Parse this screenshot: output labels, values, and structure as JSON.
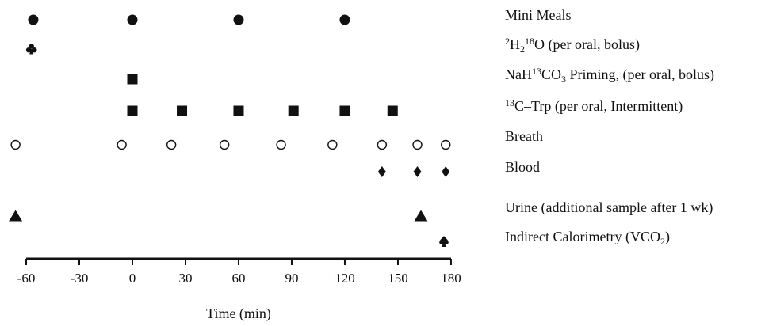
{
  "chart_data": {
    "type": "scatter",
    "title": "",
    "xlabel": "Time (min)",
    "ylabel": "",
    "xlim": [
      -68,
      183
    ],
    "xticks": [
      -60,
      -30,
      0,
      30,
      60,
      90,
      120,
      150,
      180
    ],
    "xtick_labels": [
      "-60",
      "-30",
      "0",
      "30",
      "60",
      "90",
      "120",
      "150",
      "180"
    ],
    "grid": false,
    "series": [
      {
        "key": "meals",
        "label_parts": [
          {
            "t": "Mini Meals",
            "s": ""
          }
        ],
        "marker": "filled-circle",
        "x": [
          -56,
          0,
          60,
          120
        ]
      },
      {
        "key": "water",
        "label_parts": [
          {
            "t": "2",
            "s": "sup"
          },
          {
            "t": "H",
            "s": ""
          },
          {
            "t": "2",
            "s": "sub"
          },
          {
            "t": "18",
            "s": "sup"
          },
          {
            "t": "O (per oral, bolus)",
            "s": ""
          }
        ],
        "marker": "club",
        "x": [
          -57
        ]
      },
      {
        "key": "priming",
        "label_parts": [
          {
            "t": "NaH",
            "s": ""
          },
          {
            "t": "13",
            "s": "sup"
          },
          {
            "t": "CO",
            "s": ""
          },
          {
            "t": "3",
            "s": "sub"
          },
          {
            "t": " Priming, (per oral, bolus)",
            "s": ""
          }
        ],
        "marker": "filled-square",
        "x": [
          0
        ]
      },
      {
        "key": "trp",
        "label_parts": [
          {
            "t": "13",
            "s": "sup"
          },
          {
            "t": "C–Trp (per oral, Intermittent)",
            "s": ""
          }
        ],
        "marker": "filled-square",
        "x": [
          0,
          28,
          60,
          91,
          120,
          147
        ]
      },
      {
        "key": "breath",
        "label_parts": [
          {
            "t": "Breath",
            "s": ""
          }
        ],
        "marker": "open-circle",
        "x": [
          -66,
          -6,
          22,
          52,
          84,
          113,
          141,
          161,
          177
        ]
      },
      {
        "key": "blood",
        "label_parts": [
          {
            "t": "Blood",
            "s": ""
          }
        ],
        "marker": "diamond",
        "x": [
          141,
          161,
          177
        ]
      },
      {
        "key": "urine",
        "label_parts": [
          {
            "t": "Urine (additional sample after 1 wk)",
            "s": ""
          }
        ],
        "marker": "triangle",
        "x": [
          -66,
          163
        ]
      },
      {
        "key": "calorimetry",
        "label_parts": [
          {
            "t": "Indirect Calorimetry (VCO",
            "s": ""
          },
          {
            "t": "2",
            "s": "sub"
          },
          {
            "t": ")",
            "s": ""
          }
        ],
        "marker": "spade",
        "x": [
          176
        ]
      }
    ]
  }
}
